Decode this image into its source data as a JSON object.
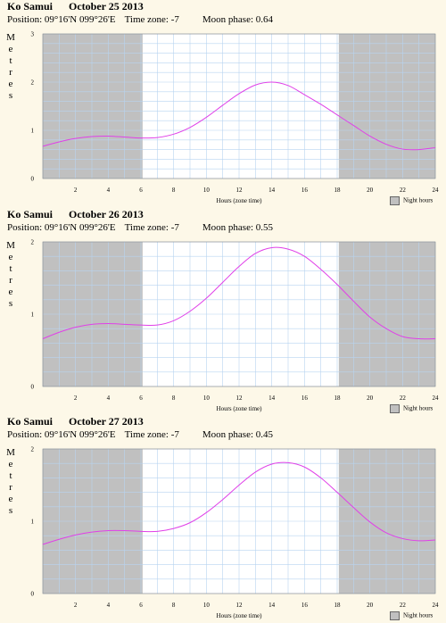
{
  "ylabel_letters": [
    "M",
    "e",
    "t",
    "r",
    "e",
    "s"
  ],
  "xlabel": "Hours (zone time)",
  "legend_label": "Night hours",
  "colors": {
    "curve": "#e040e8",
    "night": "#c0c0c0",
    "grid": "#b8d4f0",
    "day": "#ffffff"
  },
  "panels": [
    {
      "location": "Ko Samui",
      "date": "October 25 2013",
      "position": "Position: 09°16'N 099°26'E",
      "timezone": "Time zone: -7",
      "moon": "Moon phase: 0.64",
      "chart_data": {
        "type": "line",
        "xlabel": "Hours (zone time)",
        "ylabel": "Metres",
        "xlim": [
          0,
          24
        ],
        "ylim": [
          0,
          3
        ],
        "x_ticks": [
          2,
          4,
          6,
          8,
          10,
          12,
          14,
          16,
          18,
          20,
          22,
          24
        ],
        "y_ticks": [
          0,
          1,
          2,
          3
        ],
        "night_hours": [
          [
            0,
            6.1
          ],
          [
            18.1,
            24
          ]
        ],
        "x": [
          0,
          1,
          2,
          3,
          4,
          5,
          6,
          7,
          8,
          9,
          10,
          11,
          12,
          13,
          14,
          15,
          16,
          17,
          18,
          19,
          20,
          21,
          22,
          23,
          24
        ],
        "y": [
          0.67,
          0.76,
          0.83,
          0.87,
          0.88,
          0.86,
          0.84,
          0.85,
          0.92,
          1.06,
          1.27,
          1.52,
          1.76,
          1.94,
          2.0,
          1.93,
          1.74,
          1.54,
          1.32,
          1.1,
          0.88,
          0.71,
          0.61,
          0.6,
          0.64
        ]
      }
    },
    {
      "location": "Ko Samui",
      "date": "October 26 2013",
      "position": "Position: 09°16'N 099°26'E",
      "timezone": "Time zone: -7",
      "moon": "Moon phase: 0.55",
      "chart_data": {
        "type": "line",
        "xlabel": "Hours (zone time)",
        "ylabel": "Metres",
        "xlim": [
          0,
          24
        ],
        "ylim": [
          0,
          2
        ],
        "x_ticks": [
          2,
          4,
          6,
          8,
          10,
          12,
          14,
          16,
          18,
          20,
          22,
          24
        ],
        "y_ticks": [
          0,
          1,
          2
        ],
        "night_hours": [
          [
            0,
            6.1
          ],
          [
            18.1,
            24
          ]
        ],
        "x": [
          0,
          1,
          2,
          3,
          4,
          5,
          6,
          7,
          8,
          9,
          10,
          11,
          12,
          13,
          14,
          15,
          16,
          17,
          18,
          19,
          20,
          21,
          22,
          23,
          24
        ],
        "y": [
          0.66,
          0.75,
          0.82,
          0.86,
          0.87,
          0.86,
          0.85,
          0.85,
          0.91,
          1.04,
          1.22,
          1.44,
          1.66,
          1.84,
          1.92,
          1.9,
          1.8,
          1.62,
          1.41,
          1.18,
          0.96,
          0.8,
          0.69,
          0.66,
          0.66
        ]
      }
    },
    {
      "location": "Ko Samui",
      "date": "October 27 2013",
      "position": "Position: 09°16'N 099°26'E",
      "timezone": "Time zone: -7",
      "moon": "Moon phase: 0.45",
      "chart_data": {
        "type": "line",
        "xlabel": "Hours (zone time)",
        "ylabel": "Metres",
        "xlim": [
          0,
          24
        ],
        "ylim": [
          0,
          2
        ],
        "x_ticks": [
          2,
          4,
          6,
          8,
          10,
          12,
          14,
          16,
          18,
          20,
          22,
          24
        ],
        "y_ticks": [
          0,
          1,
          2
        ],
        "night_hours": [
          [
            0,
            6.1
          ],
          [
            18.1,
            24
          ]
        ],
        "x": [
          0,
          1,
          2,
          3,
          4,
          5,
          6,
          7,
          8,
          9,
          10,
          11,
          12,
          13,
          14,
          15,
          16,
          17,
          18,
          19,
          20,
          21,
          22,
          23,
          24
        ],
        "y": [
          0.68,
          0.75,
          0.81,
          0.85,
          0.87,
          0.87,
          0.86,
          0.86,
          0.9,
          0.98,
          1.12,
          1.3,
          1.5,
          1.68,
          1.79,
          1.81,
          1.75,
          1.6,
          1.4,
          1.19,
          0.99,
          0.84,
          0.76,
          0.73,
          0.74
        ]
      }
    }
  ]
}
